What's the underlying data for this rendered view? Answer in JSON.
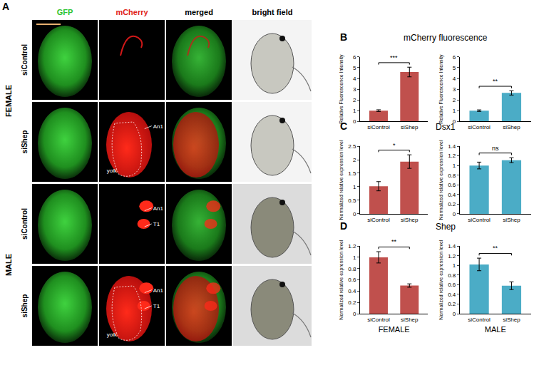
{
  "panel_a": {
    "label": "A",
    "columns": [
      "GFP",
      "mCherry",
      "merged",
      "bright field"
    ],
    "groups": [
      {
        "label": "FEMALE",
        "rows": [
          {
            "condition": "siControl",
            "annotations": []
          },
          {
            "condition": "siShep",
            "annotations": [
              "An1",
              "yolk"
            ]
          }
        ]
      },
      {
        "label": "MALE",
        "rows": [
          {
            "condition": "siControl",
            "annotations": [
              "An1",
              "T1"
            ]
          },
          {
            "condition": "siShep",
            "annotations": [
              "An1",
              "T1",
              "yolk"
            ]
          }
        ]
      }
    ]
  },
  "chart_data": [
    {
      "type": "bar",
      "panel": "B",
      "title": "mCherry fluorescence",
      "categories": [
        "siControl",
        "siShep"
      ],
      "values": [
        1.0,
        4.6
      ],
      "errors": [
        0.08,
        0.45
      ],
      "color": "#c0504d",
      "ylabel": "Relative Fluorescence Intensity",
      "ylim": [
        0,
        6
      ],
      "yticks": [
        0,
        1,
        2,
        3,
        4,
        5,
        6
      ],
      "significance": "***",
      "grid": false
    },
    {
      "type": "bar",
      "categories": [
        "siControl",
        "siShep"
      ],
      "values": [
        1.0,
        2.65
      ],
      "errors": [
        0.07,
        0.2
      ],
      "color": "#4bacc6",
      "ylabel": "Relative Fluorescence Intensity",
      "ylim": [
        0,
        6
      ],
      "yticks": [
        0,
        1,
        2,
        3,
        4,
        5,
        6
      ],
      "significance": "**",
      "grid": false
    },
    {
      "type": "bar",
      "panel": "C",
      "title": "Dsx1",
      "categories": [
        "siControl",
        "siShep"
      ],
      "values": [
        1.02,
        1.93
      ],
      "errors": [
        0.17,
        0.25
      ],
      "color": "#c0504d",
      "ylabel": "Normalized relative expression level",
      "ylim": [
        0,
        2.5
      ],
      "yticks": [
        0,
        0.5,
        1,
        1.5,
        2,
        2.5
      ],
      "significance": "*",
      "grid": false
    },
    {
      "type": "bar",
      "categories": [
        "siControl",
        "siShep"
      ],
      "values": [
        1.0,
        1.11
      ],
      "errors": [
        0.07,
        0.05
      ],
      "color": "#4bacc6",
      "ylabel": "Normalized relative expression level",
      "ylim": [
        0,
        1.4
      ],
      "yticks": [
        0,
        0.2,
        0.4,
        0.6,
        0.8,
        1,
        1.2,
        1.4
      ],
      "significance": "ns",
      "grid": false
    },
    {
      "type": "bar",
      "panel": "D",
      "title": "Shep",
      "categories": [
        "siControl",
        "siShep"
      ],
      "values": [
        1.0,
        0.5
      ],
      "errors": [
        0.1,
        0.03
      ],
      "color": "#c0504d",
      "ylabel": "Normalized relative expression level",
      "ylim": [
        0,
        1.2
      ],
      "yticks": [
        0,
        0.2,
        0.4,
        0.6,
        0.8,
        1,
        1.2
      ],
      "significance": "**",
      "xlabel": "FEMALE",
      "grid": false
    },
    {
      "type": "bar",
      "categories": [
        "siControl",
        "siShep"
      ],
      "values": [
        1.02,
        0.58
      ],
      "errors": [
        0.13,
        0.08
      ],
      "color": "#4bacc6",
      "ylabel": "Normalized relative expression level",
      "ylim": [
        0,
        1.4
      ],
      "yticks": [
        0,
        0.2,
        0.4,
        0.6,
        0.8,
        1,
        1.2,
        1.4
      ],
      "significance": "**",
      "xlabel": "MALE",
      "grid": false
    }
  ]
}
